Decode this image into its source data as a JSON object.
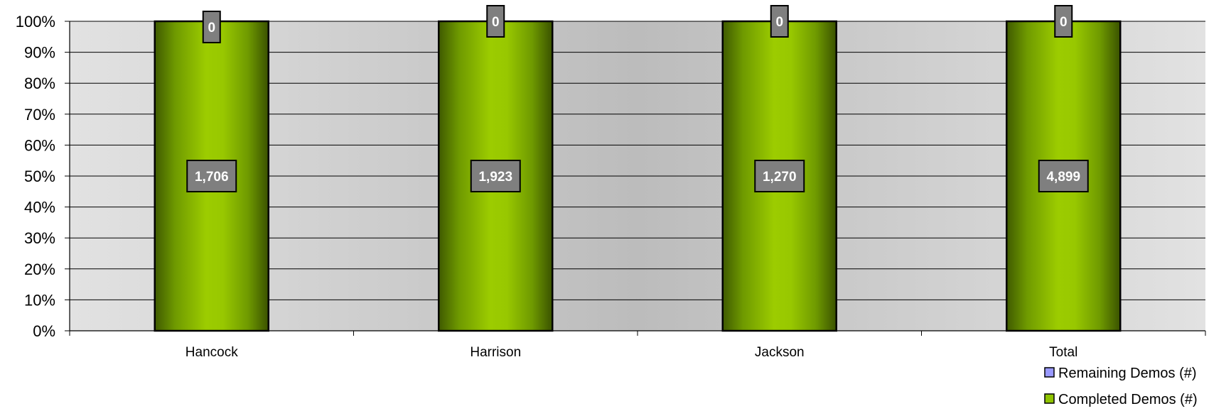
{
  "chart_data": {
    "type": "bar",
    "stacked": true,
    "normalized": "percent",
    "categories": [
      "Hancock",
      "Harrison",
      "Jackson",
      "Total"
    ],
    "series": [
      {
        "name": "Completed Demos (#)",
        "values": [
          1706,
          1923,
          1270,
          4899
        ],
        "labels": [
          "1,706",
          "1,923",
          "1,270",
          "4,899"
        ],
        "color": "#8fc400"
      },
      {
        "name": "Remaining Demos (#)",
        "values": [
          0,
          0,
          0,
          0
        ],
        "labels": [
          "0",
          "0",
          "0",
          "0"
        ],
        "color": "#9999ff"
      }
    ],
    "y_ticks": [
      "0%",
      "10%",
      "20%",
      "30%",
      "40%",
      "50%",
      "60%",
      "70%",
      "80%",
      "90%",
      "100%"
    ],
    "ylim": [
      0,
      100
    ],
    "grid": true,
    "legend_position": "bottom-right",
    "colors": {
      "plot_bg_light": "#e0e0e0",
      "plot_bg_dark": "#bdbdbd",
      "bar_dark": "#3f5a00",
      "bar_light": "#9ccc00",
      "label_box": "#7f7f7f"
    }
  }
}
